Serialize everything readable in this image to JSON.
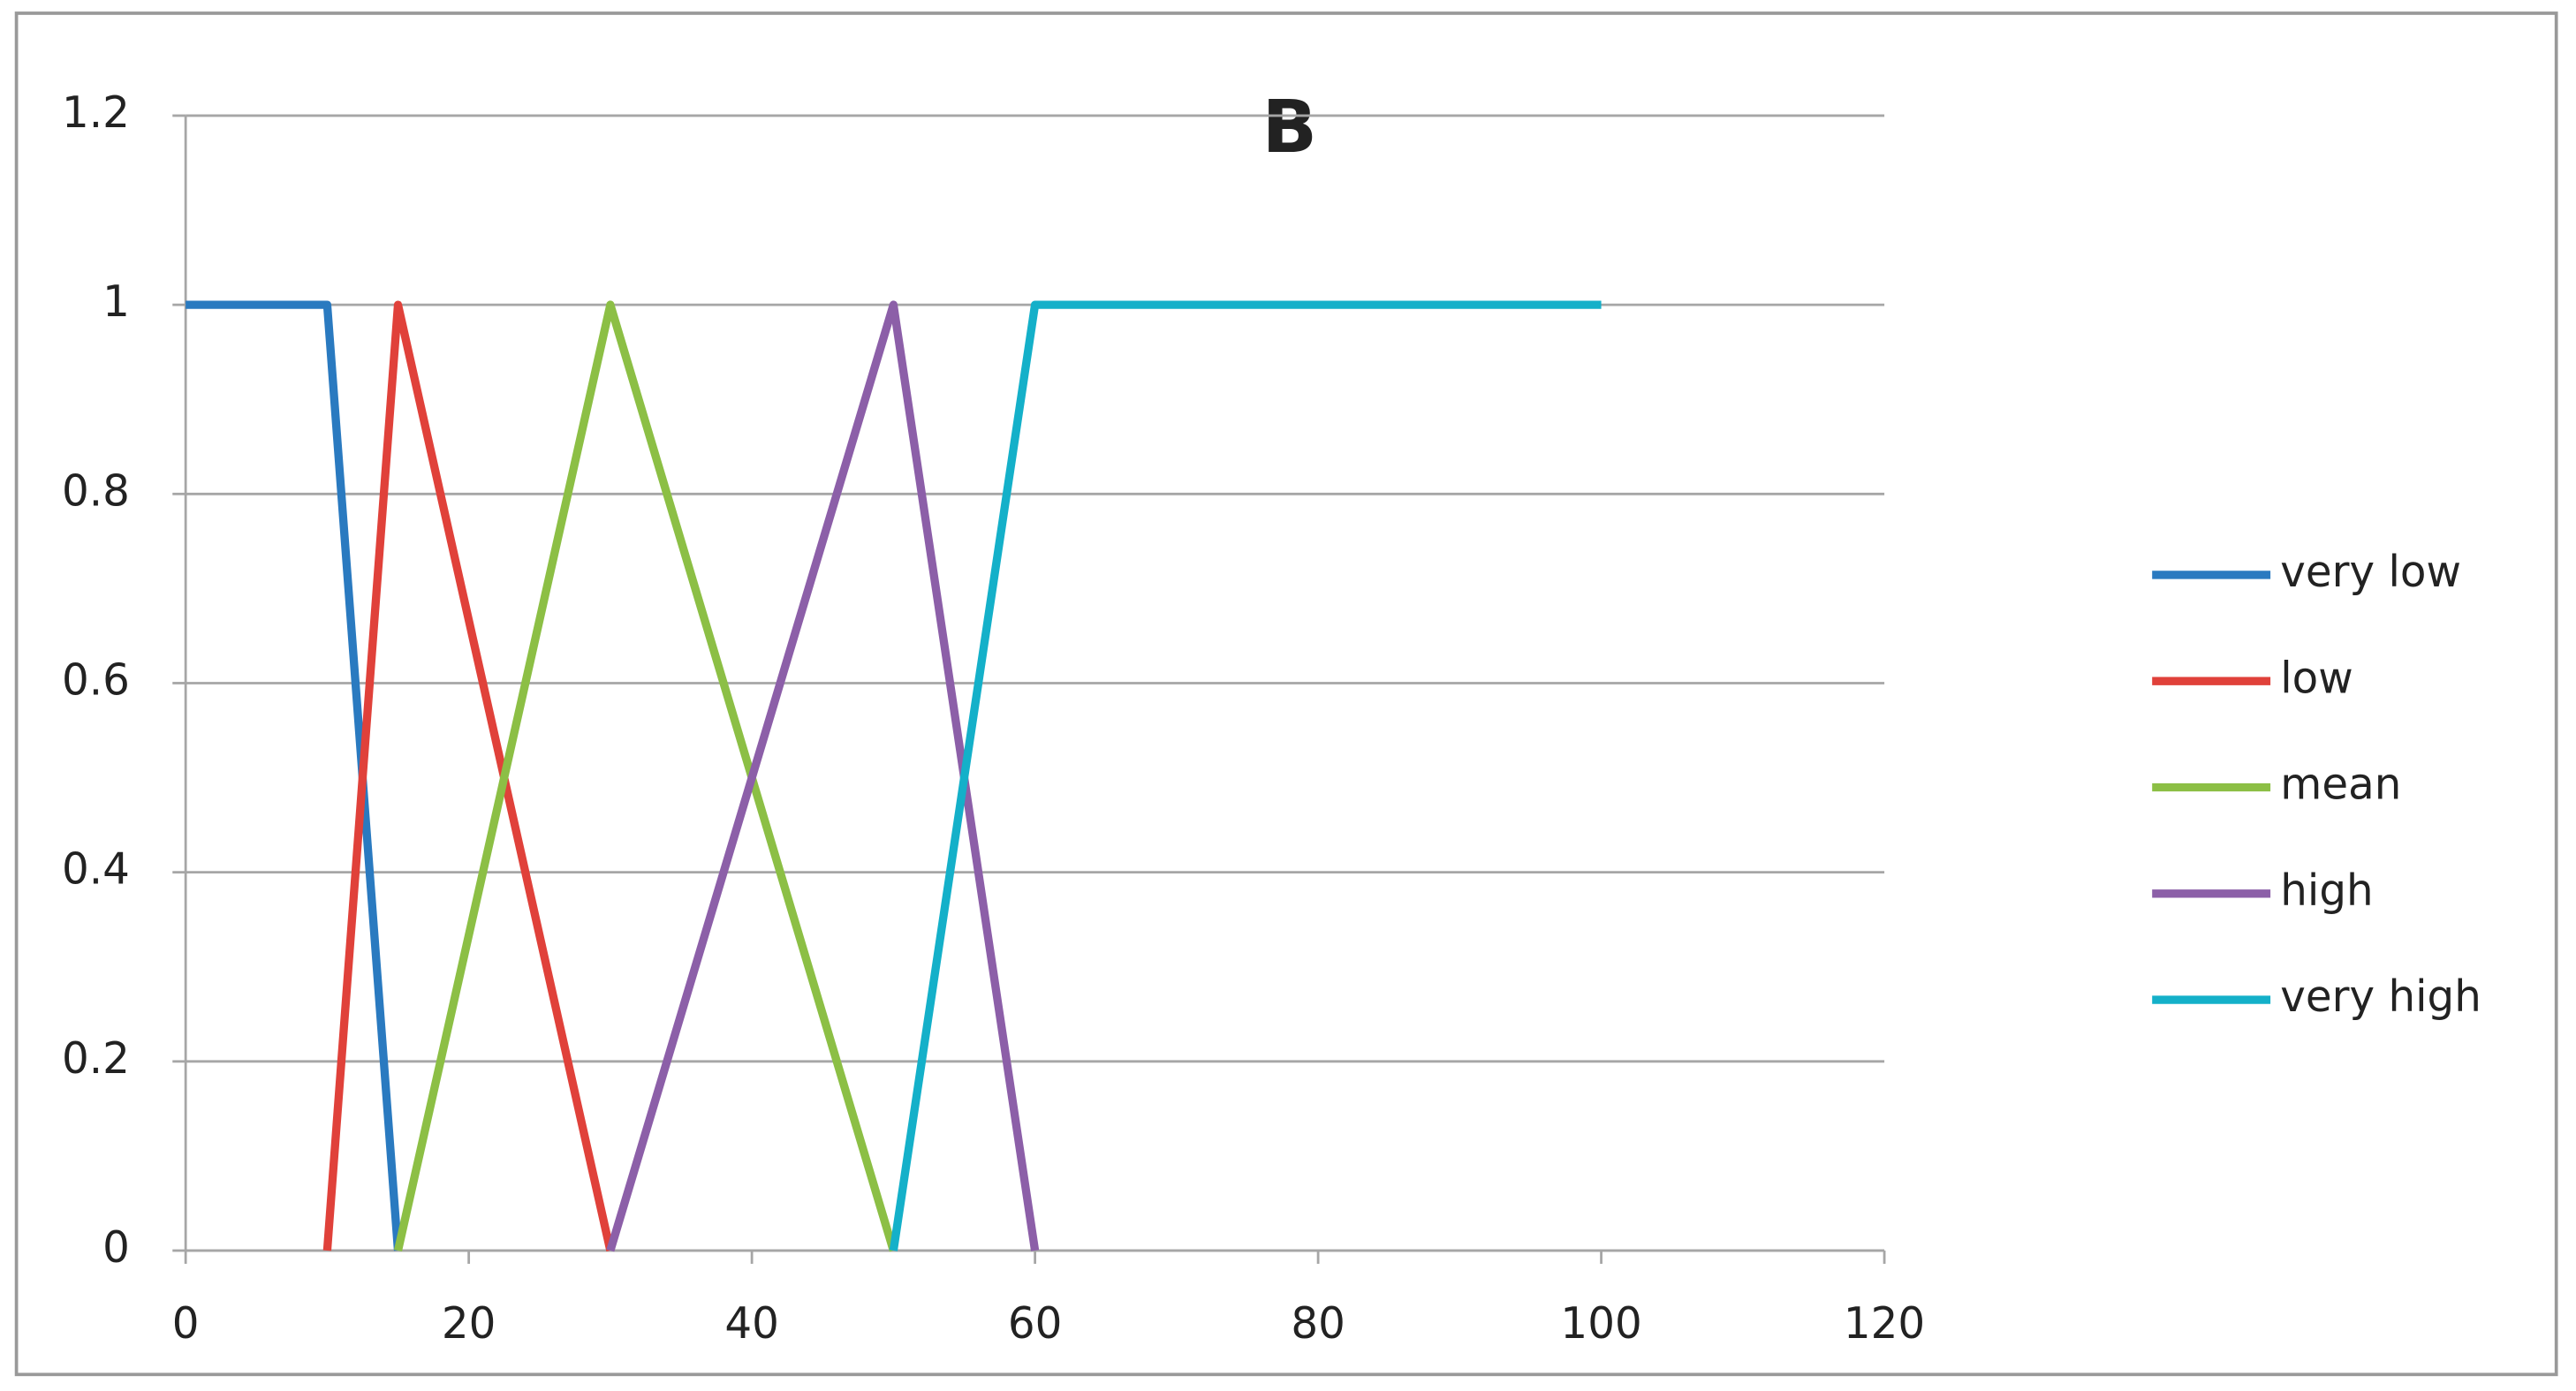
{
  "chart_data": {
    "type": "line",
    "title": "B",
    "series": [
      {
        "name": "very low",
        "color": "#2a7ac0",
        "x": [
          0,
          10,
          15
        ],
        "values": [
          1,
          1,
          0
        ]
      },
      {
        "name": "low",
        "color": "#e0413a",
        "x": [
          10,
          15,
          30
        ],
        "values": [
          0,
          1,
          0
        ]
      },
      {
        "name": "mean",
        "color": "#8cbf45",
        "x": [
          15,
          30,
          50
        ],
        "values": [
          0,
          1,
          0
        ]
      },
      {
        "name": "high",
        "color": "#8c5fa8",
        "x": [
          30,
          50,
          60
        ],
        "values": [
          0,
          1,
          0
        ]
      },
      {
        "name": "very high",
        "color": "#14b0c9",
        "x": [
          50,
          60,
          100
        ],
        "values": [
          0,
          1,
          1
        ]
      }
    ],
    "xlim": [
      0,
      120
    ],
    "xticks": [
      0,
      20,
      40,
      60,
      80,
      100,
      120
    ],
    "ylim": [
      0,
      1.2
    ],
    "yticks": [
      0,
      0.2,
      0.4,
      0.6,
      0.8,
      1,
      1.2
    ],
    "grid": true,
    "legend": "right"
  }
}
